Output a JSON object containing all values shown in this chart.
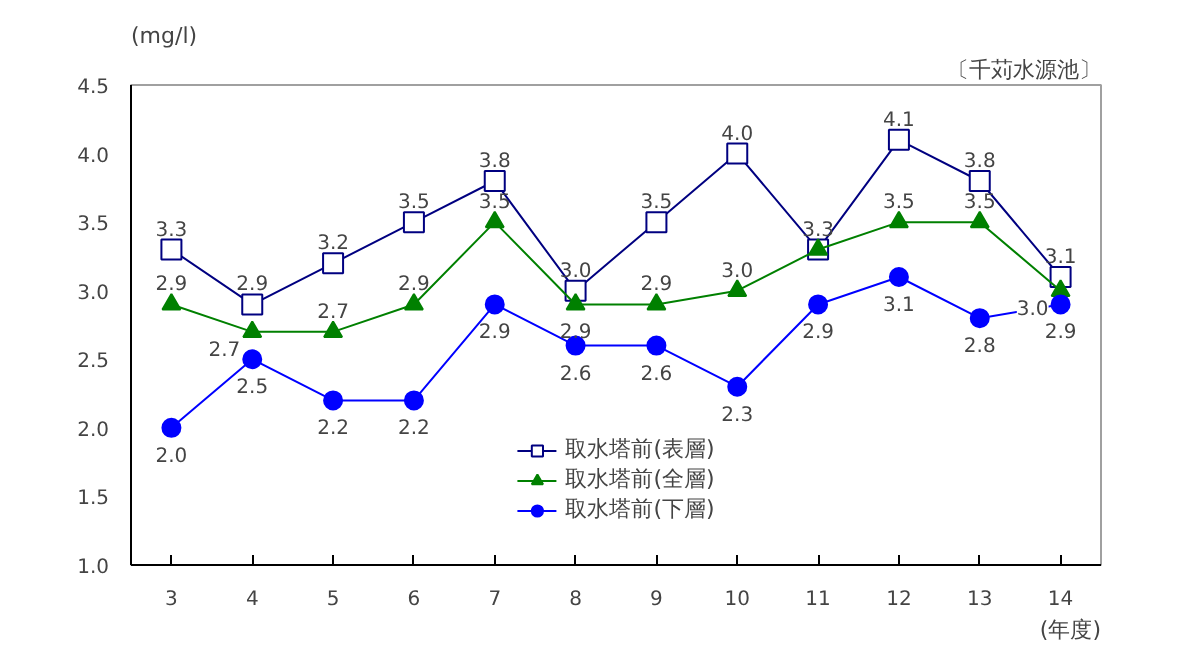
{
  "chart_data": {
    "type": "line",
    "title": "〔千苅水源池〕",
    "ylabel": "(mg/l)",
    "xlabel": "(年度)",
    "categories": [
      "3",
      "4",
      "5",
      "6",
      "7",
      "8",
      "9",
      "10",
      "11",
      "12",
      "13",
      "14"
    ],
    "ylim": [
      1.0,
      4.5
    ],
    "yticks": [
      {
        "value": 1.0,
        "label": "1.0"
      },
      {
        "value": 1.5,
        "label": "1.5"
      },
      {
        "value": 2.0,
        "label": "2.0"
      },
      {
        "value": 2.5,
        "label": "2.5"
      },
      {
        "value": 3.0,
        "label": "3.0"
      },
      {
        "value": 3.5,
        "label": "3.5"
      },
      {
        "value": 4.0,
        "label": "4.0"
      },
      {
        "value": 4.5,
        "label": "4.5"
      }
    ],
    "grid": false,
    "legend": "bottom",
    "series": [
      {
        "name": "取水塔前(表層)",
        "color": "#000080",
        "marker": "square",
        "values": [
          3.3,
          2.9,
          3.2,
          3.5,
          3.8,
          3.0,
          3.5,
          4.0,
          3.3,
          4.1,
          3.8,
          3.1
        ],
        "value_labels": [
          "3.3",
          "2.9",
          "3.2",
          "3.5",
          "3.8",
          "3.0",
          "3.5",
          "4.0",
          "3.3",
          "4.1",
          "3.8",
          "3.1"
        ]
      },
      {
        "name": "取水塔前(全層)",
        "color": "#008000",
        "marker": "triangle",
        "values": [
          2.9,
          2.7,
          2.7,
          2.9,
          3.5,
          2.9,
          2.9,
          3.0,
          3.3,
          3.5,
          3.5,
          3.0
        ],
        "value_labels": [
          "2.9",
          "2.7",
          "2.7",
          "2.9",
          "3.5",
          "2.9",
          "2.9",
          "3.0",
          null,
          "3.5",
          "3.5",
          "3.0"
        ]
      },
      {
        "name": "取水塔前(下層)",
        "color": "#0000ff",
        "marker": "circle",
        "values": [
          2.0,
          2.5,
          2.2,
          2.2,
          2.9,
          2.6,
          2.6,
          2.3,
          2.9,
          3.1,
          2.8,
          2.9
        ],
        "value_labels": [
          "2.0",
          "2.5",
          "2.2",
          "2.2",
          "2.9",
          "2.6",
          "2.6",
          "2.3",
          "2.9",
          "3.1",
          "2.8",
          "2.9"
        ]
      }
    ]
  }
}
